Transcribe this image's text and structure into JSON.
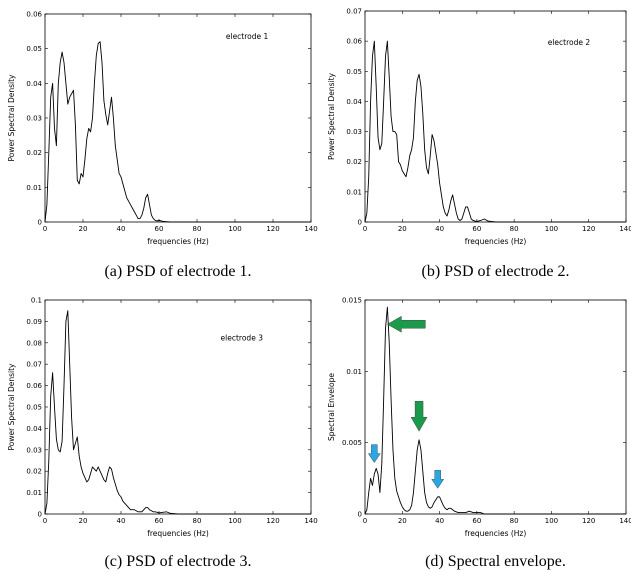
{
  "arrow_colors": {
    "green": "#1a9a4a",
    "blue": "#2aa6e0"
  },
  "chart_data": [
    {
      "type": "line",
      "caption": "(a) PSD of electrode 1.",
      "xlabel": "frequencies (Hz)",
      "ylabel": "Power Spectral Density",
      "annotation": "electrode 1",
      "xlim": [
        0,
        140
      ],
      "ylim": [
        0,
        0.06
      ],
      "xticks": [
        0,
        20,
        40,
        60,
        80,
        100,
        120,
        140
      ],
      "yticks": [
        0,
        0.01,
        0.02,
        0.03,
        0.04,
        0.05,
        0.06
      ],
      "ytick_labels": [
        "0",
        "0.01",
        "0.02",
        "0.03",
        "0.04",
        "0.05",
        "0.06"
      ],
      "x": [
        0,
        1,
        2,
        3,
        4,
        5,
        6,
        7,
        8,
        9,
        10,
        11,
        12,
        13,
        14,
        15,
        16,
        17,
        18,
        19,
        20,
        21,
        22,
        23,
        24,
        25,
        26,
        27,
        28,
        29,
        30,
        31,
        32,
        33,
        34,
        35,
        36,
        37,
        38,
        39,
        40,
        41,
        42,
        43,
        44,
        45,
        46,
        47,
        48,
        49,
        50,
        51,
        52,
        53,
        54,
        55,
        56,
        57,
        58,
        59,
        60,
        62,
        64,
        66,
        70,
        80,
        100,
        120,
        140
      ],
      "y": [
        0,
        0.005,
        0.02,
        0.036,
        0.04,
        0.027,
        0.022,
        0.04,
        0.046,
        0.049,
        0.046,
        0.04,
        0.034,
        0.036,
        0.037,
        0.038,
        0.028,
        0.012,
        0.011,
        0.014,
        0.013,
        0.018,
        0.024,
        0.027,
        0.026,
        0.03,
        0.04,
        0.048,
        0.0515,
        0.052,
        0.046,
        0.035,
        0.031,
        0.028,
        0.032,
        0.036,
        0.03,
        0.022,
        0.018,
        0.014,
        0.013,
        0.011,
        0.009,
        0.007,
        0.006,
        0.005,
        0.004,
        0.003,
        0.002,
        0.001,
        0.001,
        0.002,
        0.004,
        0.007,
        0.008,
        0.005,
        0.002,
        0.001,
        0.0005,
        0.0003,
        0.0005,
        0.0002,
        0.0001,
        0,
        0,
        0,
        0,
        0,
        0
      ]
    },
    {
      "type": "line",
      "caption": "(b) PSD of electrode 2.",
      "xlabel": "frequencies (Hz)",
      "ylabel": "Power Spectral Density",
      "annotation": "electrode 2",
      "xlim": [
        0,
        140
      ],
      "ylim": [
        0,
        0.07
      ],
      "xticks": [
        0,
        20,
        40,
        60,
        80,
        100,
        120,
        140
      ],
      "yticks": [
        0,
        0.01,
        0.02,
        0.03,
        0.04,
        0.05,
        0.06,
        0.07
      ],
      "ytick_labels": [
        "0",
        "0.01",
        "0.02",
        "0.03",
        "0.04",
        "0.05",
        "0.06",
        "0.07"
      ],
      "x": [
        0,
        1,
        2,
        3,
        4,
        5,
        6,
        7,
        8,
        9,
        10,
        11,
        12,
        13,
        14,
        15,
        16,
        17,
        18,
        19,
        20,
        21,
        22,
        23,
        24,
        25,
        26,
        27,
        28,
        29,
        30,
        31,
        32,
        33,
        34,
        35,
        36,
        37,
        38,
        39,
        40,
        41,
        42,
        43,
        44,
        45,
        46,
        47,
        48,
        49,
        50,
        51,
        52,
        53,
        54,
        55,
        56,
        57,
        58,
        59,
        60,
        62,
        64,
        66,
        70,
        80,
        100,
        120,
        140
      ],
      "y": [
        0,
        0.003,
        0.015,
        0.04,
        0.055,
        0.06,
        0.045,
        0.028,
        0.024,
        0.026,
        0.04,
        0.055,
        0.06,
        0.048,
        0.035,
        0.03,
        0.03,
        0.029,
        0.02,
        0.019,
        0.017,
        0.016,
        0.015,
        0.018,
        0.022,
        0.024,
        0.028,
        0.04,
        0.047,
        0.049,
        0.045,
        0.036,
        0.024,
        0.018,
        0.016,
        0.022,
        0.029,
        0.027,
        0.023,
        0.019,
        0.013,
        0.009,
        0.005,
        0.003,
        0.002,
        0.004,
        0.007,
        0.009,
        0.006,
        0.003,
        0.001,
        0.0005,
        0.001,
        0.003,
        0.005,
        0.005,
        0.003,
        0.001,
        0.0005,
        0.0003,
        0.0002,
        0.0005,
        0.001,
        0.0003,
        0,
        0,
        0,
        0,
        0
      ]
    },
    {
      "type": "line",
      "caption": "(c) PSD of electrode 3.",
      "xlabel": "frequencies (Hz)",
      "ylabel": "Power Spectral Density",
      "annotation": "electrode 3",
      "xlim": [
        0,
        140
      ],
      "ylim": [
        0,
        0.1
      ],
      "xticks": [
        0,
        20,
        40,
        60,
        80,
        100,
        120,
        140
      ],
      "yticks": [
        0,
        0.01,
        0.02,
        0.03,
        0.04,
        0.05,
        0.06,
        0.07,
        0.08,
        0.09,
        0.1
      ],
      "ytick_labels": [
        "0",
        "0.01",
        "0.02",
        "0.03",
        "0.04",
        "0.05",
        "0.06",
        "0.07",
        "0.08",
        "0.09",
        "0.1"
      ],
      "x": [
        0,
        1,
        2,
        3,
        4,
        5,
        6,
        7,
        8,
        9,
        10,
        11,
        12,
        13,
        14,
        15,
        16,
        17,
        18,
        19,
        20,
        21,
        22,
        23,
        24,
        25,
        26,
        27,
        28,
        29,
        30,
        31,
        32,
        33,
        34,
        35,
        36,
        37,
        38,
        39,
        40,
        41,
        42,
        43,
        44,
        45,
        46,
        47,
        48,
        49,
        50,
        51,
        52,
        53,
        54,
        55,
        56,
        57,
        58,
        59,
        60,
        62,
        64,
        66,
        70,
        80,
        100,
        120,
        140
      ],
      "y": [
        0,
        0.005,
        0.025,
        0.055,
        0.066,
        0.05,
        0.035,
        0.03,
        0.029,
        0.034,
        0.06,
        0.09,
        0.095,
        0.07,
        0.045,
        0.03,
        0.033,
        0.036,
        0.027,
        0.022,
        0.019,
        0.017,
        0.015,
        0.016,
        0.019,
        0.022,
        0.021,
        0.02,
        0.022,
        0.02,
        0.018,
        0.016,
        0.015,
        0.019,
        0.022,
        0.021,
        0.017,
        0.014,
        0.011,
        0.009,
        0.008,
        0.006,
        0.005,
        0.004,
        0.003,
        0.002,
        0.002,
        0.002,
        0.0015,
        0.001,
        0.001,
        0.001,
        0.002,
        0.003,
        0.003,
        0.002,
        0.0015,
        0.001,
        0.001,
        0.0008,
        0.0005,
        0.0008,
        0.001,
        0.0003,
        0,
        0,
        0,
        0,
        0
      ]
    },
    {
      "type": "line",
      "caption": "(d) Spectral envelope.",
      "xlabel": "frequencies (Hz)",
      "ylabel": "Spectral Envelope",
      "annotation": "",
      "xlim": [
        0,
        140
      ],
      "ylim": [
        0,
        0.015
      ],
      "xticks": [
        0,
        20,
        40,
        60,
        80,
        100,
        120,
        140
      ],
      "yticks": [
        0,
        0.005,
        0.01,
        0.015
      ],
      "ytick_labels": [
        "0",
        "0.005",
        "0.01",
        "0.015"
      ],
      "x": [
        0,
        1,
        2,
        3,
        4,
        5,
        6,
        7,
        8,
        9,
        10,
        11,
        12,
        13,
        14,
        15,
        16,
        17,
        18,
        19,
        20,
        21,
        22,
        23,
        24,
        25,
        26,
        27,
        28,
        29,
        30,
        31,
        32,
        33,
        34,
        35,
        36,
        37,
        38,
        39,
        40,
        41,
        42,
        43,
        44,
        45,
        46,
        47,
        48,
        50,
        52,
        54,
        56,
        58,
        60,
        62,
        64,
        66,
        70,
        80,
        100,
        120,
        140
      ],
      "y": [
        0,
        0.0003,
        0.0015,
        0.0025,
        0.002,
        0.0028,
        0.0032,
        0.0028,
        0.0015,
        0.0035,
        0.008,
        0.013,
        0.0145,
        0.012,
        0.008,
        0.0045,
        0.0025,
        0.0016,
        0.0012,
        0.0008,
        0.0005,
        0.0003,
        0.0002,
        0.0002,
        0.0003,
        0.0006,
        0.0015,
        0.003,
        0.0045,
        0.0052,
        0.0045,
        0.003,
        0.0015,
        0.0008,
        0.0005,
        0.0004,
        0.0005,
        0.0008,
        0.001,
        0.0012,
        0.0012,
        0.0009,
        0.0006,
        0.0004,
        0.0003,
        0.0004,
        0.0004,
        0.0003,
        0.0002,
        0.0001,
        0.0001,
        0.0001,
        0.0002,
        0.0001,
        0.0001,
        0.0001,
        0,
        0,
        0,
        0,
        0,
        0,
        0
      ],
      "arrows": [
        {
          "color": "green",
          "direction": "left",
          "tip_x": 12,
          "tip_y": 0.0133
        },
        {
          "color": "green",
          "direction": "down",
          "tip_x": 29,
          "tip_y": 0.0058
        },
        {
          "color": "blue",
          "direction": "down",
          "tip_x": 5,
          "tip_y": 0.0036
        },
        {
          "color": "blue",
          "direction": "down",
          "tip_x": 39,
          "tip_y": 0.0018
        }
      ]
    }
  ]
}
